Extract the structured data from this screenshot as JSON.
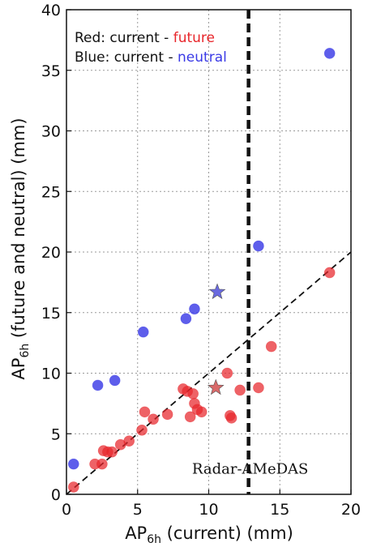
{
  "chart_data": {
    "type": "scatter",
    "xlabel_main": "AP",
    "xlabel_sub": "6h",
    "xlabel_rest": " (current) (mm)",
    "ylabel_main": "AP",
    "ylabel_sub": "6h",
    "ylabel_rest": " (future and neutral) (mm)",
    "xlim": [
      0,
      20
    ],
    "ylim": [
      0,
      40
    ],
    "xticks": [
      "0",
      "5",
      "10",
      "15",
      "20"
    ],
    "yticks": [
      "0",
      "5",
      "10",
      "15",
      "20",
      "25",
      "30",
      "35",
      "40"
    ],
    "xtick_values": [
      0,
      5,
      10,
      15,
      20
    ],
    "ytick_values": [
      0,
      5,
      10,
      15,
      20,
      25,
      30,
      35,
      40
    ],
    "grid": true,
    "legend": {
      "position": "top-left",
      "line1_prefix": "Red: current - ",
      "line1_word": "future",
      "line2_prefix": "Blue: current - ",
      "line2_word": "neutral"
    },
    "colors": {
      "red": "#e8262b",
      "blue": "#3a3ae6",
      "red_star": "#d96a6a",
      "blue_star": "#6a6ae0"
    },
    "series": [
      {
        "color_key": "red",
        "points": [
          [
            0.5,
            0.6
          ],
          [
            2.0,
            2.5
          ],
          [
            2.5,
            2.5
          ],
          [
            2.6,
            3.6
          ],
          [
            2.9,
            3.5
          ],
          [
            3.2,
            3.5
          ],
          [
            3.8,
            4.1
          ],
          [
            4.4,
            4.4
          ],
          [
            5.3,
            5.3
          ],
          [
            5.5,
            6.8
          ],
          [
            6.1,
            6.2
          ],
          [
            7.1,
            6.6
          ],
          [
            8.2,
            8.7
          ],
          [
            8.5,
            8.5
          ],
          [
            8.7,
            6.4
          ],
          [
            8.9,
            8.3
          ],
          [
            9.0,
            7.5
          ],
          [
            9.2,
            7.0
          ],
          [
            9.5,
            6.8
          ],
          [
            11.3,
            10.0
          ],
          [
            11.5,
            6.5
          ],
          [
            11.6,
            6.3
          ],
          [
            12.2,
            8.6
          ],
          [
            13.5,
            8.8
          ],
          [
            14.4,
            12.2
          ],
          [
            18.5,
            18.3
          ]
        ]
      },
      {
        "color_key": "blue",
        "points": [
          [
            0.5,
            2.5
          ],
          [
            2.2,
            9.0
          ],
          [
            3.4,
            9.4
          ],
          [
            5.4,
            13.4
          ],
          [
            8.4,
            14.5
          ],
          [
            9.0,
            15.3
          ],
          [
            13.5,
            20.5
          ],
          [
            18.5,
            36.4
          ]
        ]
      }
    ],
    "stars": [
      {
        "color_key": "red_star",
        "x": 10.5,
        "y": 8.8
      },
      {
        "color_key": "blue_star",
        "x": 10.6,
        "y": 16.7
      }
    ],
    "reference_line": {
      "style": "dashed",
      "x": [
        0,
        20
      ],
      "y": [
        0,
        20
      ]
    },
    "vertical_line": {
      "style": "dashed-thick",
      "x": 12.8,
      "label": "Radar-AMeDAS",
      "label_y": 1.7
    }
  }
}
